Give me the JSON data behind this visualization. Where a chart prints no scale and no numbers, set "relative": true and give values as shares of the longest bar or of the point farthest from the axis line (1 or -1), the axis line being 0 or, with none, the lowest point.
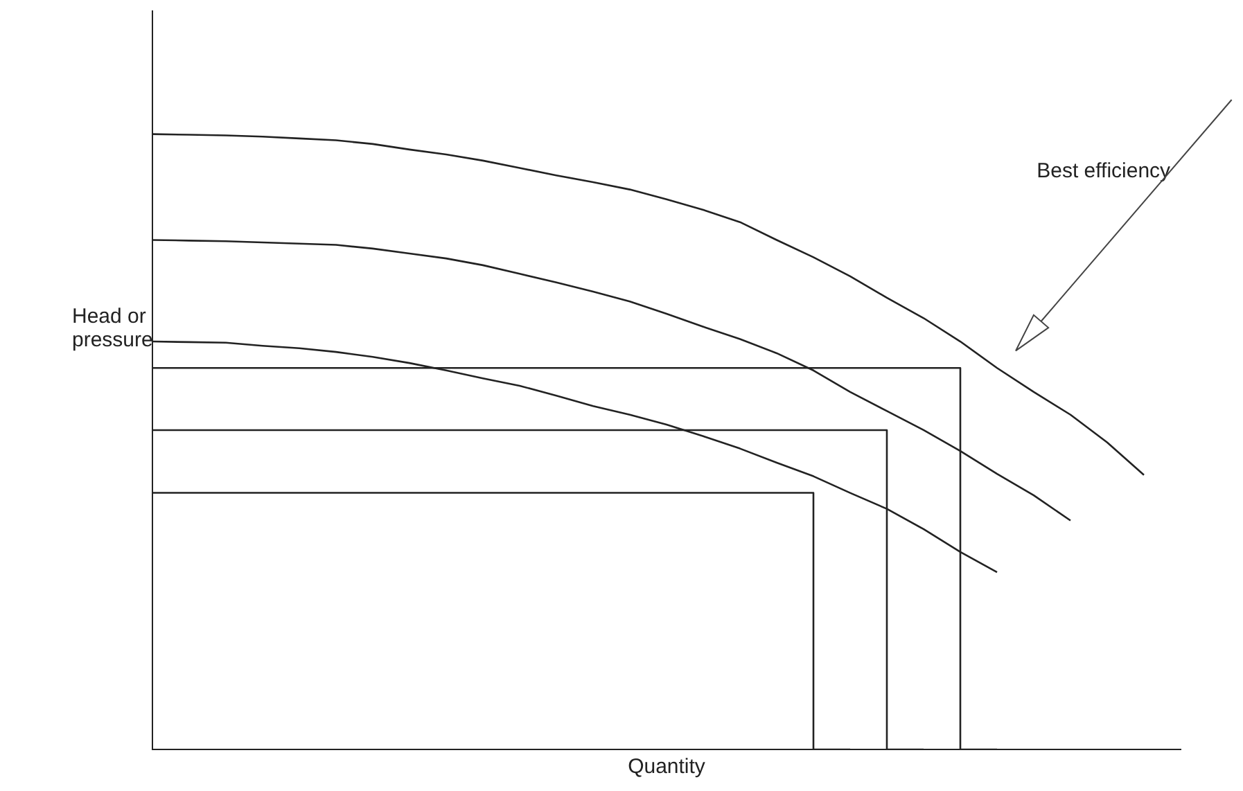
{
  "chart_data": {
    "type": "line",
    "relative": true,
    "xlabel": "Quantity",
    "ylabel": "Head or pressure",
    "grid": false,
    "legend": false,
    "marker": "none",
    "line_style": "solid",
    "categories": [
      null,
      null,
      null,
      null,
      null,
      null,
      null,
      null,
      null,
      null,
      null,
      null,
      null,
      null,
      null,
      null,
      null,
      null,
      null,
      null,
      null,
      null,
      null,
      null,
      null,
      null,
      null,
      null,
      null
    ],
    "series": [
      {
        "color": "#222222",
        "values": [
          1.0,
          0.999,
          0.998,
          0.996,
          0.993,
          0.99,
          0.984,
          0.975,
          0.967,
          0.957,
          0.945,
          0.933,
          0.922,
          0.91,
          0.894,
          0.877,
          0.857,
          0.828,
          0.8,
          0.769,
          0.734,
          0.701,
          0.663,
          0.62,
          0.581,
          0.544,
          0.499,
          0.446,
          null
        ]
      },
      {
        "color": "#222222",
        "values": [
          0.828,
          0.827,
          0.826,
          0.824,
          0.822,
          0.82,
          0.814,
          0.806,
          0.798,
          0.787,
          0.773,
          0.759,
          0.744,
          0.728,
          0.708,
          0.687,
          0.667,
          0.644,
          0.616,
          0.581,
          0.55,
          0.519,
          0.485,
          0.448,
          0.413,
          0.372,
          null,
          null,
          null
        ]
      },
      {
        "color": "#222222",
        "values": [
          0.663,
          0.662,
          0.661,
          0.656,
          0.652,
          0.646,
          0.638,
          0.628,
          0.616,
          0.603,
          0.591,
          0.575,
          0.558,
          0.544,
          0.528,
          0.509,
          0.489,
          0.466,
          0.444,
          0.417,
          0.391,
          0.358,
          0.321,
          0.288,
          null,
          null,
          null,
          null,
          null
        ]
      },
      {
        "type": "step",
        "color": "#222222",
        "values": [
          0.62,
          0.62,
          0.62,
          0.62,
          0.62,
          0.62,
          0.62,
          0.62,
          0.62,
          0.62,
          0.62,
          0.62,
          0.62,
          0.62,
          0.62,
          0.62,
          0.62,
          0.62,
          0.62,
          0.62,
          0.62,
          0.62,
          0.62,
          0,
          null,
          null,
          null,
          null,
          null
        ]
      },
      {
        "type": "step",
        "color": "#222222",
        "values": [
          0.519,
          0.519,
          0.519,
          0.519,
          0.519,
          0.519,
          0.519,
          0.519,
          0.519,
          0.519,
          0.519,
          0.519,
          0.519,
          0.519,
          0.519,
          0.519,
          0.519,
          0.519,
          0.519,
          0.519,
          0.519,
          0,
          null,
          null,
          null,
          null,
          null,
          null,
          null
        ]
      },
      {
        "type": "step",
        "color": "#222222",
        "values": [
          0.417,
          0.417,
          0.417,
          0.417,
          0.417,
          0.417,
          0.417,
          0.417,
          0.417,
          0.417,
          0.417,
          0.417,
          0.417,
          0.417,
          0.417,
          0.417,
          0.417,
          0.417,
          0.417,
          0,
          null,
          null,
          null,
          null,
          null,
          null,
          null,
          null,
          null
        ]
      }
    ],
    "annotations": [
      "Best efficiency"
    ]
  }
}
